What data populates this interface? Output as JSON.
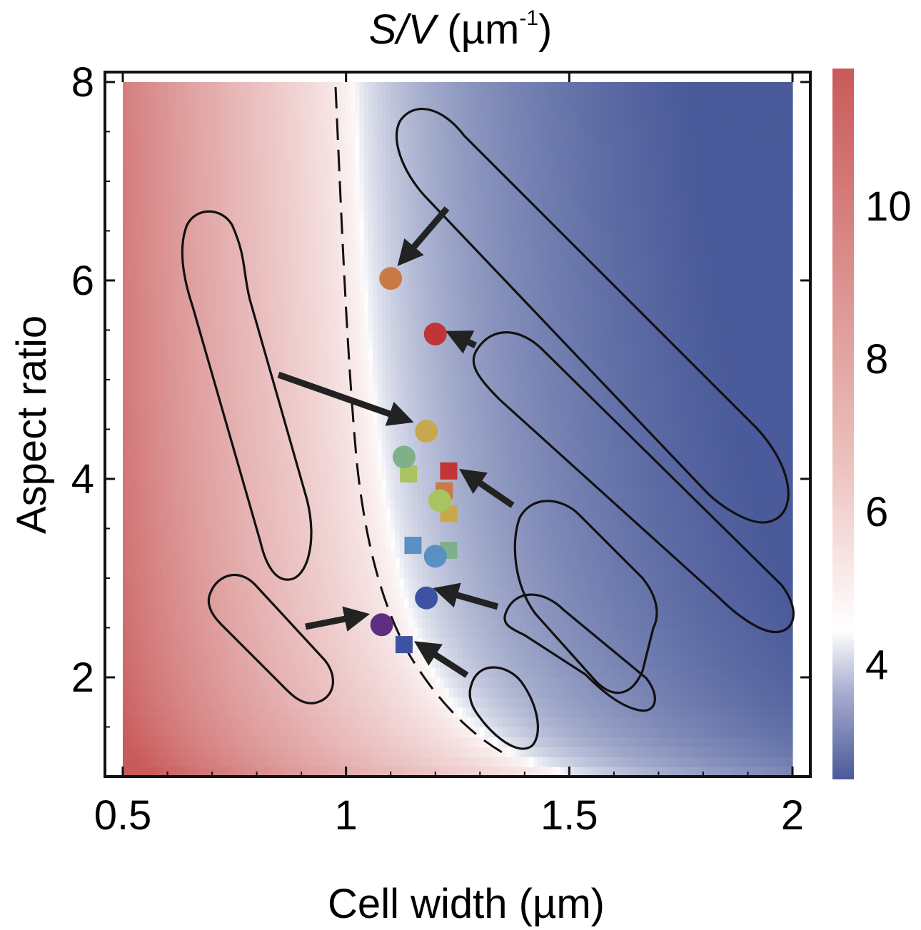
{
  "chart_data": {
    "type": "heatmap",
    "title": {
      "symbol": "S/V",
      "unit_open": " (µm",
      "unit_exp": "-1",
      "unit_close": ")"
    },
    "xlabel": "Cell width (µm)",
    "ylabel": "Aspect ratio",
    "xlim": [
      0.46,
      2.04
    ],
    "ylim": [
      1.0,
      8.1
    ],
    "data_extent": {
      "x": [
        0.5,
        2.0
      ],
      "y": [
        1.0,
        8.0
      ]
    },
    "x_ticks": [
      0.5,
      1,
      1.5,
      2
    ],
    "x_tick_labels": [
      "0.5",
      "1",
      "1.5",
      "2"
    ],
    "y_ticks": [
      2,
      4,
      6,
      8
    ],
    "y_tick_labels": [
      "2",
      "4",
      "6",
      "8"
    ],
    "colorbar": {
      "range": [
        2.5,
        11.8
      ],
      "ticks": [
        4,
        6,
        8,
        10
      ],
      "tick_labels": [
        "4",
        "6",
        "8",
        "10"
      ],
      "low_color": "#4a5a9a",
      "mid_color": "#ffffff",
      "mid_value": 4.45,
      "high_color": "#c95a5a"
    },
    "dashed_contour": {
      "label": "S/V = 4.45 µm⁻¹ boundary",
      "level": 4.45
    },
    "circles": [
      {
        "x": 1.1,
        "y": 6.02,
        "color": "#c97a45"
      },
      {
        "x": 1.2,
        "y": 5.46,
        "color": "#c03535"
      },
      {
        "x": 1.18,
        "y": 4.48,
        "color": "#c8a84f"
      },
      {
        "x": 1.13,
        "y": 4.22,
        "color": "#7fb08a"
      },
      {
        "x": 1.21,
        "y": 3.78,
        "color": "#a7c460"
      },
      {
        "x": 1.2,
        "y": 3.22,
        "color": "#5a8fc4"
      },
      {
        "x": 1.18,
        "y": 2.8,
        "color": "#3d52a0"
      },
      {
        "x": 1.08,
        "y": 2.53,
        "color": "#5e2e80"
      }
    ],
    "squares": [
      {
        "x": 1.14,
        "y": 4.05,
        "color": "#a9c460"
      },
      {
        "x": 1.23,
        "y": 4.08,
        "color": "#c03535"
      },
      {
        "x": 1.22,
        "y": 3.88,
        "color": "#c97a45"
      },
      {
        "x": 1.23,
        "y": 3.65,
        "color": "#c8a84f"
      },
      {
        "x": 1.15,
        "y": 3.33,
        "color": "#5a8fc4"
      },
      {
        "x": 1.23,
        "y": 3.28,
        "color": "#7fb08a"
      },
      {
        "x": 1.13,
        "y": 2.33,
        "color": "#3d52a0"
      }
    ]
  }
}
